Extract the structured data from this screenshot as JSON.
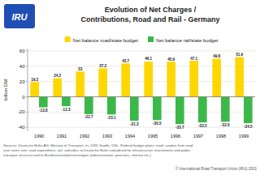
{
  "chart_data": {
    "type": "bar",
    "title": "Evolution of Net Charges /\nContributions, Road and Rail - Germany",
    "categories": [
      "1990",
      "1991",
      "1992",
      "1993",
      "1994",
      "1995",
      "1996",
      "1997",
      "1998",
      "1999"
    ],
    "series": [
      {
        "name": "Net balance road/state budget",
        "color": "#FFD700",
        "values": [
          19.3,
          24.2,
          33,
          37.2,
          43.7,
          46.1,
          45.9,
          47.1,
          49.8,
          51.9
        ]
      },
      {
        "name": "Net balance rail/state budget",
        "color": "#3CB84A",
        "values": [
          -13.8,
          -12.3,
          -22.7,
          -23.1,
          -31.3,
          -30.5,
          -35.7,
          -33.5,
          -32.6,
          -34.5
        ]
      }
    ],
    "y_label": "billion DM",
    "ylim": [
      -45,
      63
    ],
    "yticks": [
      -40,
      -20,
      0,
      20,
      40,
      60
    ],
    "grid": true,
    "legend": "top",
    "data_labels": true,
    "annotations": [
      "IRU",
      "Sources: Deutsche Bahn AG, Ministry of Transport, irs, DIW, Stadle, DSL, Federal budget plans; road: surplus from road\nuser taxes over road expenditure; rail: subsidies to Deutsche Bahn subsidised for infrastructure investments and public\ntransport services) and to Bundeseisenbahnvermögen (administration, pensions, interest etc.)",
      "© International Road Transport Union (IRU) 2001"
    ]
  }
}
